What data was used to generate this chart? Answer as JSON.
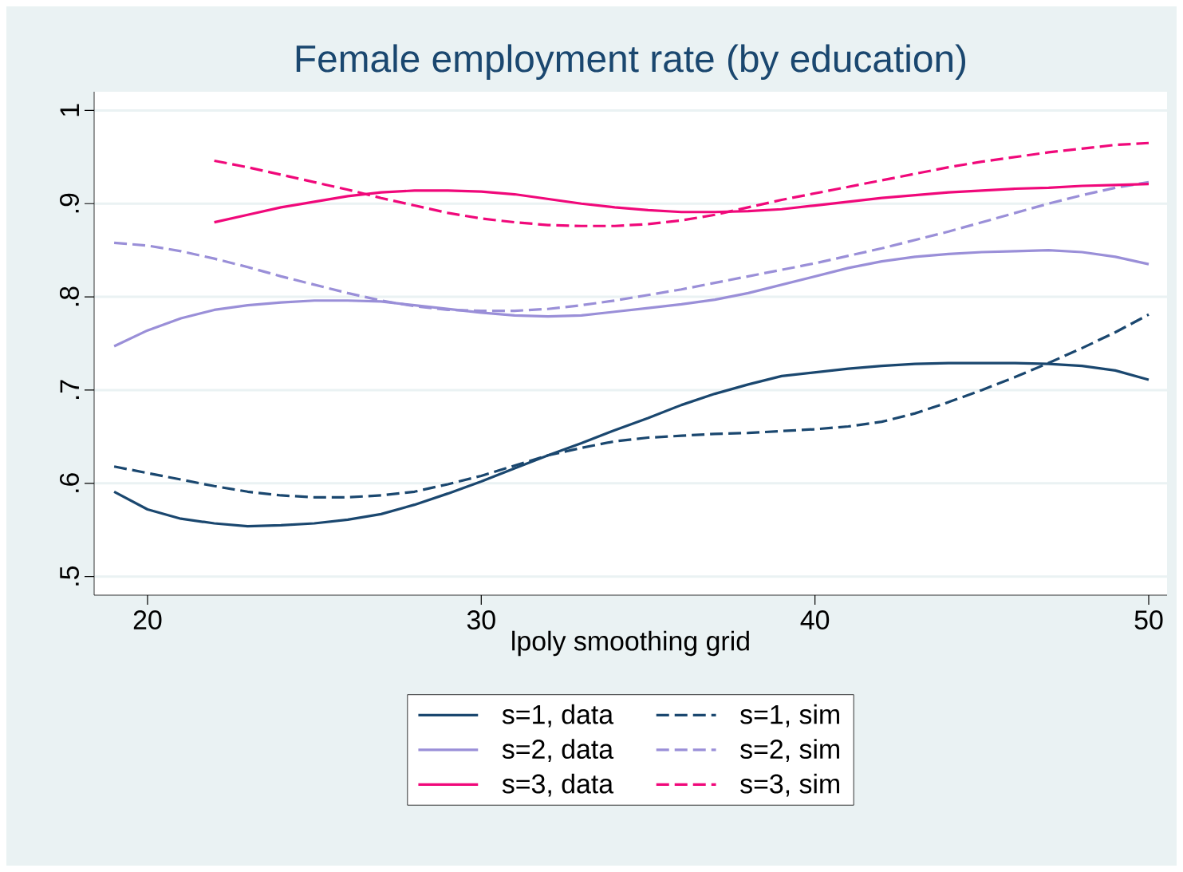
{
  "chart_data": {
    "type": "line",
    "title": "Female employment rate (by education)",
    "xlabel": "lpoly smoothing grid",
    "xlim": [
      18.4,
      50.55
    ],
    "ylim": [
      0.48,
      1.02
    ],
    "xticks": [
      20,
      30,
      40,
      50
    ],
    "yticks": [
      {
        "value": 0.5,
        "label": ".5"
      },
      {
        "value": 0.6,
        "label": ".6"
      },
      {
        "value": 0.7,
        "label": ".7"
      },
      {
        "value": 0.8,
        "label": ".8"
      },
      {
        "value": 0.9,
        "label": ".9"
      },
      {
        "value": 1,
        "label": "1"
      }
    ],
    "grid": "y",
    "legend": "bottom",
    "series": [
      {
        "name": "s=1, data",
        "color": "#1a476f",
        "line_style": "solid",
        "x": [
          19,
          20,
          21,
          22,
          23,
          24,
          25,
          26,
          27,
          28,
          29,
          30,
          31,
          32,
          33,
          34,
          35,
          36,
          37,
          38,
          39,
          40,
          41,
          42,
          43,
          44,
          45,
          46,
          47,
          48,
          49,
          50
        ],
        "values": [
          0.591,
          0.572,
          0.562,
          0.557,
          0.554,
          0.555,
          0.557,
          0.561,
          0.567,
          0.577,
          0.589,
          0.602,
          0.616,
          0.63,
          0.643,
          0.657,
          0.67,
          0.684,
          0.696,
          0.706,
          0.715,
          0.719,
          0.723,
          0.726,
          0.728,
          0.729,
          0.729,
          0.729,
          0.728,
          0.726,
          0.721,
          0.711
        ]
      },
      {
        "name": "s=1, sim",
        "color": "#1a476f",
        "line_style": "dashed",
        "x": [
          19,
          20,
          21,
          22,
          23,
          24,
          25,
          26,
          27,
          28,
          29,
          30,
          31,
          32,
          33,
          34,
          35,
          36,
          37,
          38,
          39,
          40,
          41,
          42,
          43,
          44,
          45,
          46,
          47,
          48,
          49,
          50
        ],
        "values": [
          0.618,
          0.611,
          0.604,
          0.597,
          0.591,
          0.587,
          0.585,
          0.585,
          0.587,
          0.591,
          0.599,
          0.608,
          0.619,
          0.63,
          0.638,
          0.645,
          0.649,
          0.651,
          0.653,
          0.654,
          0.656,
          0.658,
          0.661,
          0.666,
          0.675,
          0.687,
          0.7,
          0.714,
          0.729,
          0.745,
          0.762,
          0.781
        ]
      },
      {
        "name": "s=2, data",
        "color": "#9a8fd8",
        "line_style": "solid",
        "x": [
          19,
          20,
          21,
          22,
          23,
          24,
          25,
          26,
          27,
          28,
          29,
          30,
          31,
          32,
          33,
          34,
          35,
          36,
          37,
          38,
          39,
          40,
          41,
          42,
          43,
          44,
          45,
          46,
          47,
          48,
          49,
          50
        ],
        "values": [
          0.747,
          0.764,
          0.777,
          0.786,
          0.791,
          0.794,
          0.796,
          0.796,
          0.795,
          0.791,
          0.787,
          0.783,
          0.78,
          0.779,
          0.78,
          0.784,
          0.788,
          0.792,
          0.797,
          0.804,
          0.813,
          0.822,
          0.831,
          0.838,
          0.843,
          0.846,
          0.848,
          0.849,
          0.85,
          0.848,
          0.843,
          0.835
        ]
      },
      {
        "name": "s=2, sim",
        "color": "#9a8fd8",
        "line_style": "dashed",
        "x": [
          19,
          20,
          21,
          22,
          23,
          24,
          25,
          26,
          27,
          28,
          29,
          30,
          31,
          32,
          33,
          34,
          35,
          36,
          37,
          38,
          39,
          40,
          41,
          42,
          43,
          44,
          45,
          46,
          47,
          48,
          49,
          50
        ],
        "values": [
          0.858,
          0.855,
          0.849,
          0.841,
          0.832,
          0.822,
          0.813,
          0.804,
          0.796,
          0.79,
          0.786,
          0.785,
          0.785,
          0.787,
          0.791,
          0.796,
          0.802,
          0.808,
          0.815,
          0.822,
          0.829,
          0.836,
          0.844,
          0.852,
          0.861,
          0.87,
          0.88,
          0.89,
          0.9,
          0.909,
          0.917,
          0.923
        ]
      },
      {
        "name": "s=3, data",
        "color": "#f0087a",
        "line_style": "solid",
        "x": [
          22,
          23,
          24,
          25,
          26,
          27,
          28,
          29,
          30,
          31,
          32,
          33,
          34,
          35,
          36,
          37,
          38,
          39,
          40,
          41,
          42,
          43,
          44,
          45,
          46,
          47,
          48,
          49,
          50
        ],
        "values": [
          0.88,
          0.888,
          0.896,
          0.902,
          0.908,
          0.912,
          0.914,
          0.914,
          0.913,
          0.91,
          0.905,
          0.9,
          0.896,
          0.893,
          0.891,
          0.891,
          0.892,
          0.894,
          0.898,
          0.902,
          0.906,
          0.909,
          0.912,
          0.914,
          0.916,
          0.917,
          0.919,
          0.92,
          0.921
        ]
      },
      {
        "name": "s=3, sim",
        "color": "#f0087a",
        "line_style": "dashed",
        "x": [
          22,
          23,
          24,
          25,
          26,
          27,
          28,
          29,
          30,
          31,
          32,
          33,
          34,
          35,
          36,
          37,
          38,
          39,
          40,
          41,
          42,
          43,
          44,
          45,
          46,
          47,
          48,
          49,
          50
        ],
        "values": [
          0.946,
          0.939,
          0.931,
          0.923,
          0.915,
          0.906,
          0.898,
          0.89,
          0.884,
          0.88,
          0.877,
          0.876,
          0.876,
          0.878,
          0.882,
          0.888,
          0.896,
          0.904,
          0.911,
          0.918,
          0.925,
          0.932,
          0.939,
          0.945,
          0.95,
          0.955,
          0.959,
          0.963,
          0.965
        ]
      }
    ]
  }
}
